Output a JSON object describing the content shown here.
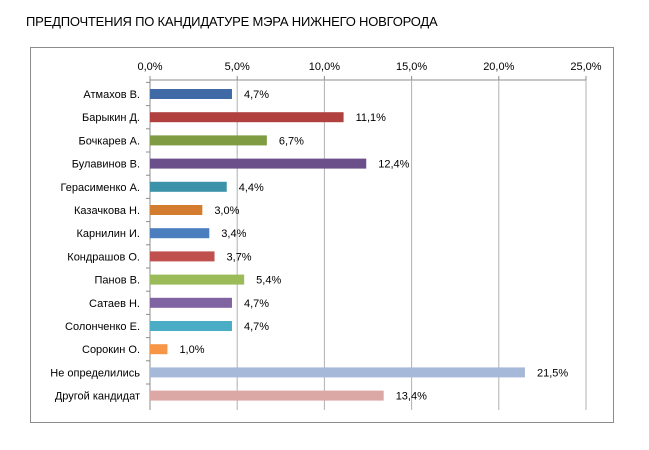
{
  "chart_data": {
    "type": "bar",
    "orientation": "horizontal",
    "title": "ПРЕДПОЧТЕНИЯ ПО КАНДИДАТУРЕ МЭРА НИЖНЕГО НОВГОРОДА",
    "categories": [
      "Атмахов В.",
      "Барыкин Д.",
      "Бочкарев А.",
      "Булавинов В.",
      "Герасименко А.",
      "Казачкова Н.",
      "Карнилин И.",
      "Кондрашов О.",
      "Панов В.",
      "Сатаев Н.",
      "Солонченко Е.",
      "Сорокин О.",
      "Не определились",
      "Другой кандидат"
    ],
    "values": [
      4.7,
      11.1,
      6.7,
      12.4,
      4.4,
      3.0,
      3.4,
      3.7,
      5.4,
      4.7,
      4.7,
      1.0,
      21.5,
      13.4
    ],
    "value_labels": [
      "4,7%",
      "11,1%",
      "6,7%",
      "12,4%",
      "4,4%",
      "3,0%",
      "3,4%",
      "3,7%",
      "5,4%",
      "4,7%",
      "4,7%",
      "1,0%",
      "21,5%",
      "13,4%"
    ],
    "bar_colors": [
      "#3f6aa5",
      "#b0413e",
      "#7f9c42",
      "#6a4f8b",
      "#3c92a8",
      "#d47c2f",
      "#4a7ebf",
      "#c0504d",
      "#9bbb59",
      "#8064a2",
      "#4bacc6",
      "#f79646",
      "#a7b9d8",
      "#dba8a6"
    ],
    "xlim": [
      0,
      25
    ],
    "x_ticks": [
      0,
      5,
      10,
      15,
      20,
      25
    ],
    "x_tick_labels": [
      "0,0%",
      "5,0%",
      "10,0%",
      "15,0%",
      "20,0%",
      "25,0%"
    ],
    "x_axis_position": "top",
    "grid": true,
    "legend": "none"
  }
}
